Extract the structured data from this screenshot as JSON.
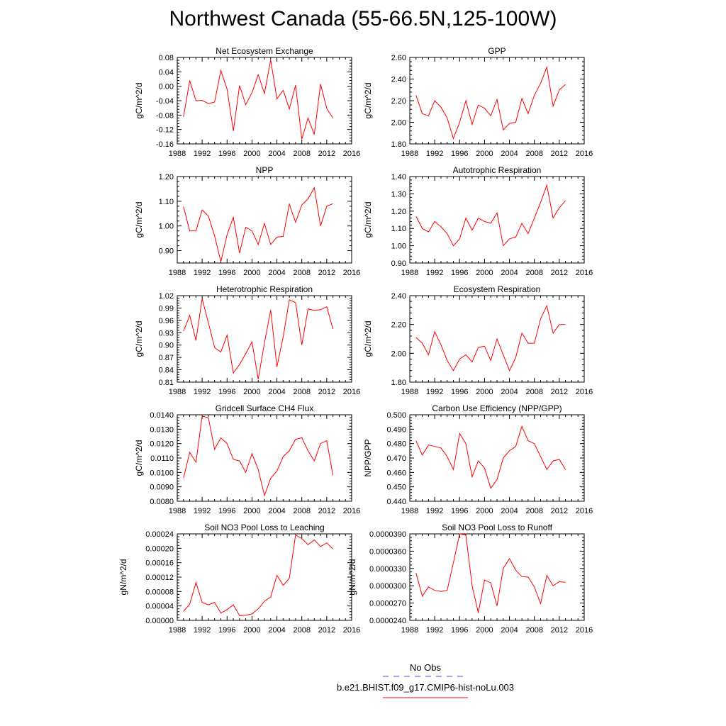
{
  "page": {
    "title": "Northwest Canada (55-66.5N,125-100W)"
  },
  "legend": {
    "entries": [
      {
        "label": "No Obs",
        "color": "#4a4ad8",
        "style": "dashed"
      },
      {
        "label": "b.e21.BHIST.f09_g17.CMIP6-hist-noLu.003",
        "color": "#ff0000",
        "style": "solid"
      }
    ]
  },
  "chart_data": [
    {
      "type": "line",
      "title": "Net Ecosystem Exchange",
      "ylabel": "gC/m^2/d",
      "xlim": [
        1988,
        2016
      ],
      "xticks": [
        "1988",
        "1992",
        "1996",
        "2000",
        "2004",
        "2008",
        "2012",
        "2016"
      ],
      "ylim": [
        -0.16,
        0.08
      ],
      "yticks": [
        "0.08",
        "0.04",
        "0.00",
        "-0.04",
        "-0.08",
        "-0.12",
        "-0.16"
      ],
      "series": [
        {
          "color": "#ff0000",
          "x": [
            1989,
            1990,
            1991,
            1992,
            1993,
            1994,
            1995,
            1996,
            1997,
            1998,
            1999,
            2000,
            2001,
            2002,
            2003,
            2004,
            2005,
            2006,
            2007,
            2008,
            2009,
            2010,
            2011,
            2012,
            2013
          ],
          "values": [
            -0.085,
            0.016,
            -0.04,
            -0.039,
            -0.048,
            -0.044,
            0.044,
            -0.008,
            -0.124,
            0.002,
            -0.051,
            -0.018,
            0.032,
            -0.02,
            0.073,
            -0.035,
            -0.011,
            -0.063,
            0.003,
            -0.147,
            -0.088,
            -0.134,
            0.006,
            -0.062,
            -0.088
          ]
        }
      ]
    },
    {
      "type": "line",
      "title": "GPP",
      "ylabel": "gC/m^2/d",
      "xlim": [
        1988,
        2016
      ],
      "xticks": [
        "1988",
        "1992",
        "1996",
        "2000",
        "2004",
        "2008",
        "2012",
        "2016"
      ],
      "ylim": [
        1.8,
        2.6
      ],
      "yticks": [
        "2.60",
        "2.40",
        "2.20",
        "2.00",
        "1.80"
      ],
      "series": [
        {
          "color": "#ff0000",
          "x": [
            1989,
            1990,
            1991,
            1992,
            1993,
            1994,
            1995,
            1996,
            1997,
            1998,
            1999,
            2000,
            2001,
            2002,
            2003,
            2004,
            2005,
            2006,
            2007,
            2008,
            2009,
            2010,
            2011,
            2012,
            2013
          ],
          "values": [
            2.25,
            2.08,
            2.06,
            2.2,
            2.14,
            2.04,
            1.85,
            2.0,
            2.2,
            1.98,
            2.16,
            2.13,
            2.06,
            2.21,
            1.93,
            1.99,
            2.0,
            2.22,
            2.08,
            2.25,
            2.36,
            2.51,
            2.15,
            2.3,
            2.35
          ]
        }
      ]
    },
    {
      "type": "line",
      "title": "NPP",
      "ylabel": "gC/m^2/d",
      "xlim": [
        1988,
        2016
      ],
      "xticks": [
        "1988",
        "1992",
        "1996",
        "2000",
        "2004",
        "2008",
        "2012",
        "2016"
      ],
      "ylim": [
        0.85,
        1.2
      ],
      "yticks": [
        "1.20",
        "1.10",
        "1.00",
        "0.90"
      ],
      "series": [
        {
          "color": "#ff0000",
          "x": [
            1989,
            1990,
            1991,
            1992,
            1993,
            1994,
            1995,
            1996,
            1997,
            1998,
            1999,
            2000,
            2001,
            2002,
            2003,
            2004,
            2005,
            2006,
            2007,
            2008,
            2009,
            2010,
            2011,
            2012,
            2013
          ],
          "values": [
            1.078,
            0.98,
            0.98,
            1.065,
            1.04,
            0.96,
            0.855,
            0.965,
            1.035,
            0.89,
            0.995,
            0.98,
            0.925,
            1.01,
            0.925,
            0.955,
            0.958,
            1.088,
            1.015,
            1.085,
            1.11,
            1.155,
            1.0,
            1.08,
            1.09
          ]
        }
      ]
    },
    {
      "type": "line",
      "title": "Autotrophic Respiration",
      "ylabel": "gC/m^2/d",
      "xlim": [
        1988,
        2016
      ],
      "xticks": [
        "1988",
        "1992",
        "1996",
        "2000",
        "2004",
        "2008",
        "2012",
        "2016"
      ],
      "ylim": [
        0.9,
        1.4
      ],
      "yticks": [
        "1.40",
        "1.30",
        "1.20",
        "1.10",
        "1.00",
        "0.90"
      ],
      "series": [
        {
          "color": "#ff0000",
          "x": [
            1989,
            1990,
            1991,
            1992,
            1993,
            1994,
            1995,
            1996,
            1997,
            1998,
            1999,
            2000,
            2001,
            2002,
            2003,
            2004,
            2005,
            2006,
            2007,
            2008,
            2009,
            2010,
            2011,
            2012,
            2013
          ],
          "values": [
            1.17,
            1.1,
            1.08,
            1.14,
            1.11,
            1.07,
            1.0,
            1.04,
            1.16,
            1.09,
            1.16,
            1.14,
            1.13,
            1.19,
            1.0,
            1.04,
            1.05,
            1.13,
            1.07,
            1.16,
            1.25,
            1.35,
            1.16,
            1.22,
            1.26
          ]
        }
      ]
    },
    {
      "type": "line",
      "title": "Heterotrophic Respiration",
      "ylabel": "gC/m^2/d",
      "xlim": [
        1988,
        2016
      ],
      "xticks": [
        "1988",
        "1992",
        "1996",
        "2000",
        "2004",
        "2008",
        "2012",
        "2016"
      ],
      "ylim": [
        0.81,
        1.02
      ],
      "yticks": [
        "1.02",
        "0.99",
        "0.96",
        "0.93",
        "0.90",
        "0.87",
        "0.84",
        "0.81"
      ],
      "series": [
        {
          "color": "#ff0000",
          "x": [
            1989,
            1990,
            1991,
            1992,
            1993,
            1994,
            1995,
            1996,
            1997,
            1998,
            1999,
            2000,
            2001,
            2002,
            2003,
            2004,
            2005,
            2006,
            2007,
            2008,
            2009,
            2010,
            2011,
            2012,
            2013
          ],
          "values": [
            0.934,
            0.972,
            0.911,
            1.013,
            0.954,
            0.894,
            0.883,
            0.924,
            0.832,
            0.853,
            0.879,
            0.908,
            0.817,
            0.905,
            0.985,
            0.847,
            0.92,
            1.01,
            1.003,
            0.9,
            0.988,
            0.984,
            0.986,
            0.993,
            0.939
          ]
        }
      ]
    },
    {
      "type": "line",
      "title": "Ecosystem Respiration",
      "ylabel": "gC/m^2/d",
      "xlim": [
        1988,
        2016
      ],
      "xticks": [
        "1988",
        "1992",
        "1996",
        "2000",
        "2004",
        "2008",
        "2012",
        "2016"
      ],
      "ylim": [
        1.8,
        2.4
      ],
      "yticks": [
        "2.40",
        "2.20",
        "2.00",
        "1.80"
      ],
      "series": [
        {
          "color": "#ff0000",
          "x": [
            1989,
            1990,
            1991,
            1992,
            1993,
            1994,
            1995,
            1996,
            1997,
            1998,
            1999,
            2000,
            2001,
            2002,
            2003,
            2004,
            2005,
            2006,
            2007,
            2008,
            2009,
            2010,
            2011,
            2012,
            2013
          ],
          "values": [
            2.11,
            2.07,
            1.99,
            2.15,
            2.06,
            1.95,
            1.88,
            1.96,
            1.99,
            1.94,
            2.04,
            2.05,
            1.95,
            2.1,
            1.99,
            1.88,
            1.97,
            2.14,
            2.07,
            2.07,
            2.24,
            2.33,
            2.14,
            2.2,
            2.2
          ]
        }
      ]
    },
    {
      "type": "line",
      "title": "Gridcell Surface CH4 Flux",
      "ylabel": "gC/m^2/d",
      "xlim": [
        1988,
        2016
      ],
      "xticks": [
        "1988",
        "1992",
        "1996",
        "2000",
        "2004",
        "2008",
        "2012",
        "2016"
      ],
      "ylim": [
        0.008,
        0.014
      ],
      "yticks": [
        "0.0140",
        "0.0130",
        "0.0120",
        "0.0110",
        "0.0100",
        "0.0090",
        "0.0080"
      ],
      "series": [
        {
          "color": "#ff0000",
          "x": [
            1989,
            1990,
            1991,
            1992,
            1993,
            1994,
            1995,
            1996,
            1997,
            1998,
            1999,
            2000,
            2001,
            2002,
            2003,
            2004,
            2005,
            2006,
            2007,
            2008,
            2009,
            2010,
            2011,
            2012,
            2013
          ],
          "values": [
            0.0096,
            0.0114,
            0.0107,
            0.0139,
            0.0138,
            0.0116,
            0.0124,
            0.012,
            0.0109,
            0.0108,
            0.01,
            0.0113,
            0.0102,
            0.0084,
            0.0096,
            0.0101,
            0.0111,
            0.0115,
            0.0123,
            0.0124,
            0.0115,
            0.0108,
            0.012,
            0.0122,
            0.0098
          ]
        }
      ]
    },
    {
      "type": "line",
      "title": "Carbon Use Efficiency (NPP/GPP)",
      "ylabel": "NPP/GPP",
      "xlim": [
        1988,
        2016
      ],
      "xticks": [
        "1988",
        "1992",
        "1996",
        "2000",
        "2004",
        "2008",
        "2012",
        "2016"
      ],
      "ylim": [
        0.44,
        0.5
      ],
      "yticks": [
        "0.500",
        "0.490",
        "0.480",
        "0.470",
        "0.460",
        "0.450",
        "0.440"
      ],
      "series": [
        {
          "color": "#ff0000",
          "x": [
            1989,
            1990,
            1991,
            1992,
            1993,
            1994,
            1995,
            1996,
            1997,
            1998,
            1999,
            2000,
            2001,
            2002,
            2003,
            2004,
            2005,
            2006,
            2007,
            2008,
            2009,
            2010,
            2011,
            2012,
            2013
          ],
          "values": [
            0.482,
            0.472,
            0.479,
            0.478,
            0.477,
            0.471,
            0.462,
            0.487,
            0.48,
            0.457,
            0.468,
            0.463,
            0.449,
            0.455,
            0.47,
            0.475,
            0.478,
            0.492,
            0.482,
            0.48,
            0.471,
            0.462,
            0.468,
            0.469,
            0.462
          ]
        }
      ]
    },
    {
      "type": "line",
      "title": "Soil NO3 Pool Loss to Leaching",
      "ylabel": "gN/m^2/d",
      "xlim": [
        1988,
        2016
      ],
      "xticks": [
        "1988",
        "1992",
        "1996",
        "2000",
        "2004",
        "2008",
        "2012",
        "2016"
      ],
      "ylim": [
        0,
        0.00024
      ],
      "yticks": [
        "0.00024",
        "0.00020",
        "0.00016",
        "0.00012",
        "0.00008",
        "0.00004",
        "0.00000"
      ],
      "series": [
        {
          "color": "#ff0000",
          "x": [
            1989,
            1990,
            1991,
            1992,
            1993,
            1994,
            1995,
            1996,
            1997,
            1998,
            1999,
            2000,
            2001,
            2002,
            2003,
            2004,
            2005,
            2006,
            2007,
            2008,
            2009,
            2010,
            2011,
            2012,
            2013
          ],
          "values": [
            2.5e-05,
            4.5e-05,
            0.000105,
            5e-05,
            4.3e-05,
            5e-05,
            2e-05,
            3e-05,
            4.3e-05,
            1.3e-05,
            1.4e-05,
            1.8e-05,
            3.2e-05,
            5.3e-05,
            6.5e-05,
            0.000125,
            9.7e-05,
            0.000117,
            0.000237,
            0.000227,
            0.00021,
            0.000223,
            0.000205,
            0.000215,
            0.000198
          ]
        }
      ]
    },
    {
      "type": "line",
      "title": "Soil NO3 Pool Loss to Runoff",
      "ylabel": "gN/m^2/d",
      "xlim": [
        1988,
        2016
      ],
      "xticks": [
        "1988",
        "1992",
        "1996",
        "2000",
        "2004",
        "2008",
        "2012",
        "2016"
      ],
      "ylim": [
        2.4e-05,
        3.9e-05
      ],
      "yticks": [
        "0.0000390",
        "0.0000360",
        "0.0000330",
        "0.0000300",
        "0.0000270",
        "0.0000240"
      ],
      "series": [
        {
          "color": "#ff0000",
          "x": [
            1989,
            1990,
            1991,
            1992,
            1993,
            1994,
            1995,
            1996,
            1997,
            1998,
            1999,
            2000,
            2001,
            2002,
            2003,
            2004,
            2005,
            2006,
            2007,
            2008,
            2009,
            2010,
            2011,
            2012,
            2013
          ],
          "values": [
            3.22e-05,
            2.82e-05,
            2.98e-05,
            2.92e-05,
            2.9e-05,
            2.92e-05,
            3.4e-05,
            3.9e-05,
            3.88e-05,
            3e-05,
            2.53e-05,
            3.1e-05,
            3.05e-05,
            2.65e-05,
            3.3e-05,
            3.47e-05,
            3.27e-05,
            3.16e-05,
            3.15e-05,
            2.98e-05,
            2.69e-05,
            3.18e-05,
            3e-05,
            3.07e-05,
            3.06e-05
          ]
        }
      ]
    }
  ]
}
